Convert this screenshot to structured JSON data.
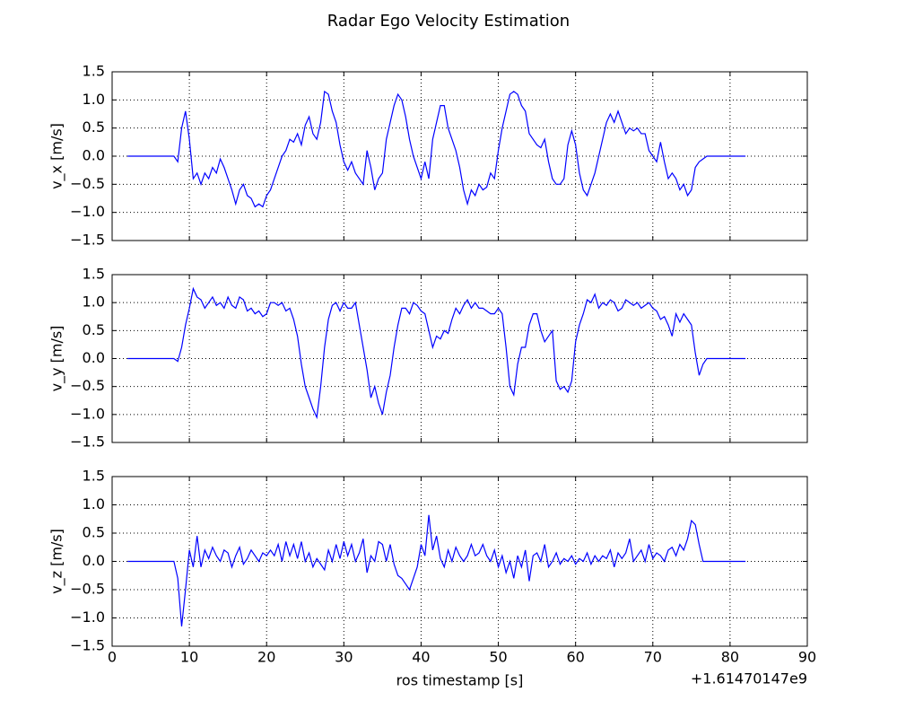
{
  "chart_data": [
    {
      "type": "line",
      "title": "Radar Ego Velocity Estimation",
      "ylabel": "v_x [m/s]",
      "color": "#0000ff",
      "grid": true,
      "show_xtick_labels": false,
      "xlim": [
        0,
        90
      ],
      "xticks": [
        0,
        10,
        20,
        30,
        40,
        50,
        60,
        70,
        80,
        90
      ],
      "ylim": [
        -1.5,
        1.5
      ],
      "yticks": [
        {
          "value": -1.5,
          "label": "−1.5"
        },
        {
          "value": -1,
          "label": "−1.0"
        },
        {
          "value": -0.5,
          "label": "−0.5"
        },
        {
          "value": 0,
          "label": "0.0"
        },
        0.5,
        {
          "value": 1,
          "label": "1.0"
        },
        1.5
      ],
      "x": [
        2,
        8,
        8.5,
        9,
        9.5,
        10,
        10.5,
        11,
        11.5,
        12,
        12.5,
        13,
        13.5,
        14,
        14.5,
        15,
        15.5,
        16,
        16.5,
        17,
        17.5,
        18,
        18.5,
        19,
        19.5,
        20,
        20.5,
        21,
        21.5,
        22,
        22.5,
        23,
        23.5,
        24,
        24.5,
        25,
        25.5,
        26,
        26.5,
        27,
        27.5,
        28,
        28.5,
        29,
        29.5,
        30,
        30.5,
        31,
        31.5,
        32,
        32.5,
        33,
        33.5,
        34,
        34.5,
        35,
        35.5,
        36,
        36.5,
        37,
        37.5,
        38,
        38.5,
        39,
        39.5,
        40,
        40.5,
        41,
        41.5,
        42,
        42.5,
        43,
        43.5,
        44,
        44.5,
        45,
        45.5,
        46,
        46.5,
        47,
        47.5,
        48,
        48.5,
        49,
        49.5,
        50,
        50.5,
        51,
        51.5,
        52,
        52.5,
        53,
        53.5,
        54,
        54.5,
        55,
        55.5,
        56,
        56.5,
        57,
        57.5,
        58,
        58.5,
        59,
        59.5,
        60,
        60.5,
        61,
        61.5,
        62,
        62.5,
        63,
        63.5,
        64,
        64.5,
        65,
        65.5,
        66,
        66.5,
        67,
        67.5,
        68,
        68.5,
        69,
        69.5,
        70,
        70.5,
        71,
        71.5,
        72,
        72.5,
        73,
        73.5,
        74,
        74.5,
        75,
        75.5,
        76,
        76.5,
        77,
        82
      ],
      "values": [
        0,
        0,
        -0.1,
        0.5,
        0.8,
        0.3,
        -0.4,
        -0.3,
        -0.5,
        -0.3,
        -0.4,
        -0.2,
        -0.3,
        -0.05,
        -0.2,
        -0.4,
        -0.6,
        -0.85,
        -0.6,
        -0.5,
        -0.7,
        -0.75,
        -0.9,
        -0.85,
        -0.9,
        -0.7,
        -0.6,
        -0.4,
        -0.2,
        0,
        0.1,
        0.3,
        0.25,
        0.4,
        0.2,
        0.55,
        0.7,
        0.4,
        0.3,
        0.6,
        1.15,
        1.1,
        0.8,
        0.6,
        0.2,
        -0.1,
        -0.25,
        -0.1,
        -0.3,
        -0.4,
        -0.5,
        0.1,
        -0.2,
        -0.6,
        -0.4,
        -0.3,
        0.3,
        0.6,
        0.9,
        1.1,
        1.0,
        0.7,
        0.3,
        0,
        -0.2,
        -0.4,
        -0.1,
        -0.4,
        0.3,
        0.6,
        0.9,
        0.9,
        0.5,
        0.3,
        0.1,
        -0.2,
        -0.6,
        -0.85,
        -0.6,
        -0.7,
        -0.5,
        -0.6,
        -0.55,
        -0.3,
        -0.4,
        0.1,
        0.5,
        0.8,
        1.1,
        1.15,
        1.1,
        0.9,
        0.8,
        0.4,
        0.3,
        0.2,
        0.15,
        0.3,
        -0.1,
        -0.4,
        -0.5,
        -0.5,
        -0.4,
        0.2,
        0.45,
        0.2,
        -0.3,
        -0.6,
        -0.7,
        -0.5,
        -0.3,
        0,
        0.3,
        0.6,
        0.75,
        0.6,
        0.8,
        0.6,
        0.4,
        0.5,
        0.45,
        0.5,
        0.4,
        0.4,
        0.1,
        0,
        -0.1,
        0.25,
        -0.1,
        -0.4,
        -0.3,
        -0.4,
        -0.6,
        -0.5,
        -0.7,
        -0.6,
        -0.2,
        -0.1,
        -0.05,
        0,
        0
      ]
    },
    {
      "type": "line",
      "ylabel": "v_y [m/s]",
      "color": "#0000ff",
      "grid": true,
      "show_xtick_labels": false,
      "xlim": [
        0,
        90
      ],
      "xticks": [
        0,
        10,
        20,
        30,
        40,
        50,
        60,
        70,
        80,
        90
      ],
      "ylim": [
        -1.5,
        1.5
      ],
      "yticks": [
        {
          "value": -1.5,
          "label": "−1.5"
        },
        {
          "value": -1,
          "label": "−1.0"
        },
        {
          "value": -0.5,
          "label": "−0.5"
        },
        {
          "value": 0,
          "label": "0.0"
        },
        0.5,
        {
          "value": 1,
          "label": "1.0"
        },
        1.5
      ],
      "x": [
        2,
        8,
        8.5,
        9,
        9.5,
        10,
        10.5,
        11,
        11.5,
        12,
        12.5,
        13,
        13.5,
        14,
        14.5,
        15,
        15.5,
        16,
        16.5,
        17,
        17.5,
        18,
        18.5,
        19,
        19.5,
        20,
        20.5,
        21,
        21.5,
        22,
        22.5,
        23,
        23.5,
        24,
        24.5,
        25,
        25.5,
        26,
        26.5,
        27,
        27.5,
        28,
        28.5,
        29,
        29.5,
        30,
        30.5,
        31,
        31.5,
        32,
        32.5,
        33,
        33.5,
        34,
        34.5,
        35,
        35.5,
        36,
        36.5,
        37,
        37.5,
        38,
        38.5,
        39,
        39.5,
        40,
        40.5,
        41,
        41.5,
        42,
        42.5,
        43,
        43.5,
        44,
        44.5,
        45,
        45.5,
        46,
        46.5,
        47,
        47.5,
        48,
        48.5,
        49,
        49.5,
        50,
        50.5,
        51,
        51.5,
        52,
        52.5,
        53,
        53.5,
        54,
        54.5,
        55,
        55.5,
        56,
        56.5,
        57,
        57.5,
        58,
        58.5,
        59,
        59.5,
        60,
        60.5,
        61,
        61.5,
        62,
        62.5,
        63,
        63.5,
        64,
        64.5,
        65,
        65.5,
        66,
        66.5,
        67,
        67.5,
        68,
        68.5,
        69,
        69.5,
        70,
        70.5,
        71,
        71.5,
        72,
        72.5,
        73,
        73.5,
        74,
        74.5,
        75,
        75.5,
        76,
        76.5,
        77,
        82
      ],
      "values": [
        0,
        0,
        -0.05,
        0.2,
        0.6,
        0.9,
        1.25,
        1.1,
        1.05,
        0.9,
        1.0,
        1.1,
        0.95,
        1.0,
        0.9,
        1.1,
        0.95,
        0.9,
        1.1,
        1.05,
        0.85,
        0.9,
        0.8,
        0.85,
        0.75,
        0.8,
        1.0,
        1.0,
        0.95,
        1.0,
        0.85,
        0.9,
        0.7,
        0.4,
        -0.1,
        -0.5,
        -0.7,
        -0.9,
        -1.05,
        -0.5,
        0.2,
        0.7,
        0.95,
        1.0,
        0.85,
        1.0,
        0.9,
        0.9,
        1.0,
        0.6,
        0.2,
        -0.2,
        -0.7,
        -0.5,
        -0.8,
        -1.0,
        -0.6,
        -0.3,
        0.2,
        0.6,
        0.9,
        0.9,
        0.8,
        1.0,
        0.95,
        0.85,
        0.8,
        0.5,
        0.2,
        0.4,
        0.35,
        0.5,
        0.45,
        0.7,
        0.9,
        0.8,
        0.95,
        1.05,
        0.9,
        1.0,
        0.9,
        0.9,
        0.85,
        0.8,
        0.8,
        0.9,
        0.8,
        0.2,
        -0.5,
        -0.65,
        -0.1,
        0.2,
        0.2,
        0.6,
        0.8,
        0.8,
        0.5,
        0.3,
        0.4,
        0.5,
        -0.4,
        -0.55,
        -0.5,
        -0.6,
        -0.4,
        0.3,
        0.6,
        0.8,
        1.05,
        1.0,
        1.15,
        0.9,
        1.0,
        0.95,
        1.05,
        1.0,
        0.85,
        0.9,
        1.05,
        1.0,
        0.95,
        1.0,
        0.9,
        0.95,
        1.0,
        0.9,
        0.85,
        0.7,
        0.75,
        0.6,
        0.4,
        0.8,
        0.65,
        0.8,
        0.7,
        0.6,
        0.1,
        -0.3,
        -0.1,
        0,
        0
      ]
    },
    {
      "type": "line",
      "ylabel": "v_z [m/s]",
      "xlabel": "ros timestamp [s]",
      "x_offset_label": "+1.61470147e9",
      "color": "#0000ff",
      "grid": true,
      "show_xtick_labels": true,
      "xlim": [
        0,
        90
      ],
      "xticks": [
        0,
        10,
        20,
        30,
        40,
        50,
        60,
        70,
        80,
        90
      ],
      "ylim": [
        -1.5,
        1.5
      ],
      "yticks": [
        {
          "value": -1.5,
          "label": "−1.5"
        },
        {
          "value": -1,
          "label": "−1.0"
        },
        {
          "value": -0.5,
          "label": "−0.5"
        },
        {
          "value": 0,
          "label": "0.0"
        },
        0.5,
        {
          "value": 1,
          "label": "1.0"
        },
        1.5
      ],
      "x": [
        2,
        8,
        8.5,
        9,
        9.5,
        10,
        10.5,
        11,
        11.5,
        12,
        12.5,
        13,
        13.5,
        14,
        14.5,
        15,
        15.5,
        16,
        16.5,
        17,
        17.5,
        18,
        18.5,
        19,
        19.5,
        20,
        20.5,
        21,
        21.5,
        22,
        22.5,
        23,
        23.5,
        24,
        24.5,
        25,
        25.5,
        26,
        26.5,
        27,
        27.5,
        28,
        28.5,
        29,
        29.5,
        30,
        30.5,
        31,
        31.5,
        32,
        32.5,
        33,
        33.5,
        34,
        34.5,
        35,
        35.5,
        36,
        36.5,
        37,
        37.5,
        38,
        38.5,
        39,
        39.5,
        40,
        40.5,
        41,
        41.5,
        42,
        42.5,
        43,
        43.5,
        44,
        44.5,
        45,
        45.5,
        46,
        46.5,
        47,
        47.5,
        48,
        48.5,
        49,
        49.5,
        50,
        50.5,
        51,
        51.5,
        52,
        52.5,
        53,
        53.5,
        54,
        54.5,
        55,
        55.5,
        56,
        56.5,
        57,
        57.5,
        58,
        58.5,
        59,
        59.5,
        60,
        60.5,
        61,
        61.5,
        62,
        62.5,
        63,
        63.5,
        64,
        64.5,
        65,
        65.5,
        66,
        66.5,
        67,
        67.5,
        68,
        68.5,
        69,
        69.5,
        70,
        70.5,
        71,
        71.5,
        72,
        72.5,
        73,
        73.5,
        74,
        74.5,
        75,
        75.5,
        76,
        76.5,
        77,
        82
      ],
      "values": [
        0,
        0,
        -0.3,
        -1.15,
        -0.5,
        0.2,
        -0.1,
        0.45,
        -0.1,
        0.2,
        0.05,
        0.25,
        0.1,
        0.0,
        0.2,
        0.15,
        -0.1,
        0.1,
        0.25,
        -0.05,
        0.05,
        0.2,
        0.1,
        0.0,
        0.15,
        0.1,
        0.2,
        0.1,
        0.3,
        0.0,
        0.35,
        0.1,
        0.3,
        0.05,
        0.35,
        0.0,
        0.15,
        -0.1,
        0.05,
        -0.05,
        -0.15,
        0.2,
        0.0,
        0.3,
        0.05,
        0.35,
        0.1,
        0.3,
        0.0,
        0.15,
        0.4,
        -0.2,
        0.1,
        0.0,
        0.35,
        0.3,
        0.0,
        0.3,
        -0.05,
        -0.25,
        -0.3,
        -0.4,
        -0.5,
        -0.3,
        -0.1,
        0.3,
        0.1,
        0.82,
        0.2,
        0.45,
        0.05,
        -0.1,
        0.2,
        0.0,
        0.25,
        0.1,
        0.0,
        0.1,
        0.3,
        0.1,
        0.15,
        0.3,
        0.1,
        0.0,
        0.2,
        -0.1,
        0.1,
        -0.2,
        0.0,
        -0.3,
        0.1,
        -0.1,
        0.2,
        -0.35,
        0.1,
        0.15,
        0.0,
        0.3,
        -0.1,
        0.0,
        0.15,
        -0.05,
        0.05,
        0.0,
        0.1,
        -0.05,
        0.05,
        0.0,
        0.15,
        -0.05,
        0.1,
        0.0,
        0.1,
        0.05,
        0.2,
        -0.1,
        0.15,
        0.05,
        0.15,
        0.4,
        0.0,
        0.1,
        0.2,
        0.0,
        0.3,
        0.05,
        0.15,
        0.1,
        0.0,
        0.2,
        0.25,
        0.1,
        0.3,
        0.2,
        0.4,
        0.72,
        0.65,
        0.3,
        0,
        0,
        0
      ]
    }
  ]
}
